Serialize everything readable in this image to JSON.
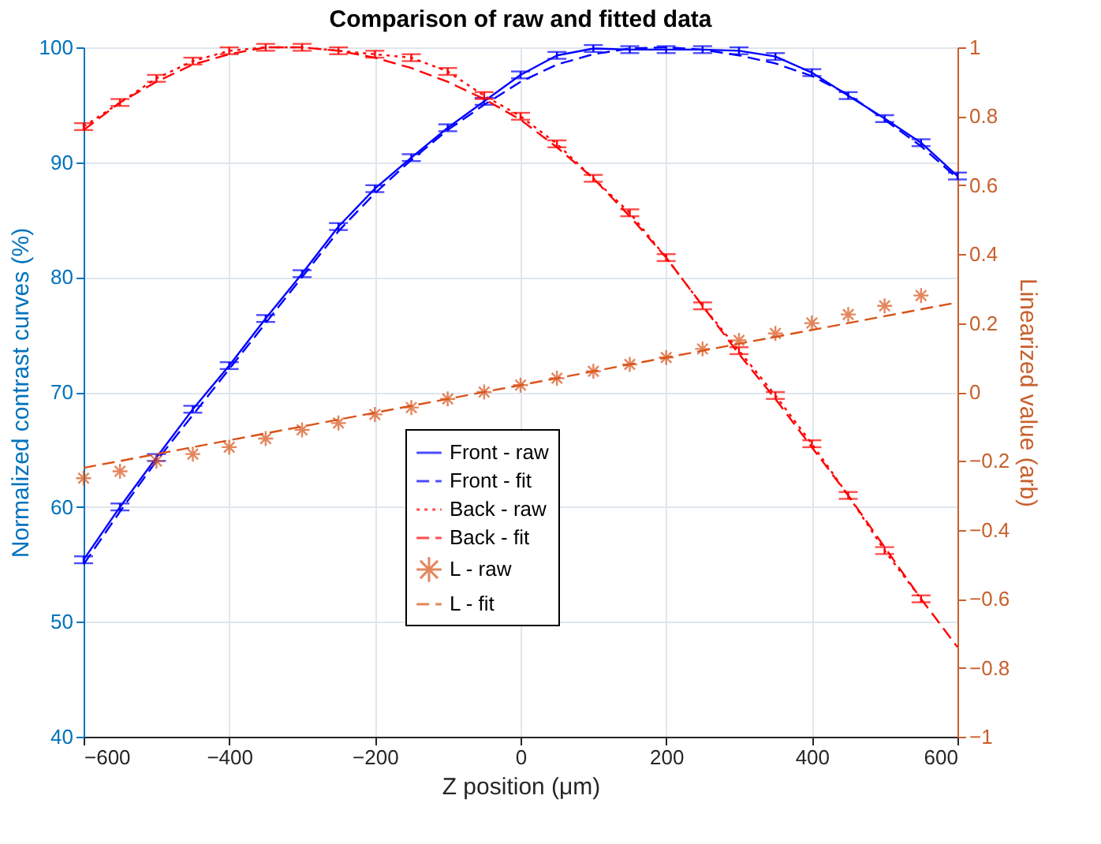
{
  "chart_data": {
    "type": "line",
    "title": "Comparison of raw and fitted data",
    "xlabel": "Z position (μm)",
    "ylabel": "Normalized contrast curves (%)",
    "y2label": "Linearized value (arb)",
    "x": [
      -600,
      -550,
      -500,
      -450,
      -400,
      -350,
      -300,
      -250,
      -200,
      -150,
      -100,
      -50,
      0,
      50,
      100,
      150,
      200,
      250,
      300,
      350,
      400,
      450,
      500,
      550,
      600
    ],
    "xlim": [
      -600,
      600
    ],
    "xticks": [
      -600,
      -400,
      -200,
      0,
      200,
      400,
      600
    ],
    "ylim": [
      40,
      100
    ],
    "yticks": [
      40,
      50,
      60,
      70,
      80,
      90,
      100
    ],
    "y2lim": [
      -1,
      1
    ],
    "y2ticks": [
      -1,
      -0.8,
      -0.6,
      -0.4,
      -0.2,
      0,
      0.2,
      0.4,
      0.6,
      0.8,
      1
    ],
    "grid": true,
    "legend": "bottom",
    "series": [
      {
        "name": "Front - raw",
        "color": "#0000ff",
        "type": "line",
        "line_style": "solid",
        "values": [
          55.4,
          60,
          64.3,
          68.5,
          72.3,
          76.4,
          80.3,
          84.4,
          87.7,
          90.4,
          93,
          95.3,
          97.6,
          99.3,
          99.9,
          99.8,
          99.8,
          99.8,
          99.7,
          99.2,
          97.8,
          95.8,
          93.8,
          91.7,
          88.8
        ],
        "errors": [
          0.3,
          0.3,
          0.3,
          0.3,
          0.3,
          0.3,
          0.3,
          0.3,
          0.3,
          0.3,
          0.3,
          0.3,
          0.3,
          0.3,
          0.3,
          0.3,
          0.3,
          0.3,
          0.3,
          0.3,
          0.3,
          0.3,
          0.3,
          0.3,
          0.3
        ]
      },
      {
        "name": "Front - fit",
        "color": "#0000ff",
        "type": "line",
        "line_style": "dashed",
        "values": [
          55,
          59.6,
          64,
          68,
          72,
          76,
          80,
          84,
          87.3,
          90.2,
          92.8,
          95,
          97,
          98.5,
          99.4,
          99.9,
          100,
          99.8,
          99.3,
          98.6,
          97.5,
          95.9,
          93.7,
          91.4,
          88.6
        ]
      },
      {
        "name": "Back - raw",
        "color": "#ff0000",
        "type": "line",
        "line_style": "dotted",
        "axis": "y2",
        "values": [
          0.77,
          0.84,
          0.91,
          0.96,
          0.99,
          1,
          1,
          0.99,
          0.98,
          0.97,
          0.93,
          0.86,
          0.8,
          0.72,
          0.62,
          0.52,
          0.39,
          0.25,
          0.12,
          -0.01,
          -0.15,
          -0.3,
          -0.46,
          -0.6,
          null
        ],
        "errors": [
          0.01,
          0.01,
          0.01,
          0.01,
          0.01,
          0.01,
          0.01,
          0.01,
          0.01,
          0.01,
          0.01,
          0.01,
          0.01,
          0.01,
          0.01,
          0.01,
          0.01,
          0.01,
          0.01,
          0.01,
          0.01,
          0.01,
          0.01,
          0.01,
          null
        ]
      },
      {
        "name": "Back - fit",
        "color": "#ff0000",
        "type": "line",
        "line_style": "dashed",
        "axis": "y2",
        "values": [
          0.76,
          0.84,
          0.9,
          0.95,
          0.98,
          1,
          1,
          0.99,
          0.97,
          0.94,
          0.9,
          0.85,
          0.79,
          0.71,
          0.62,
          0.51,
          0.39,
          0.25,
          0.11,
          -0.02,
          -0.16,
          -0.3,
          -0.45,
          -0.6,
          -0.74
        ]
      },
      {
        "name": "L - raw",
        "color": "#d95319",
        "type": "scatter",
        "marker": "cross",
        "axis": "y2",
        "values": [
          -0.25,
          -0.23,
          -0.2,
          -0.18,
          -0.16,
          -0.135,
          -0.11,
          -0.09,
          -0.065,
          -0.045,
          -0.02,
          0,
          0.02,
          0.04,
          0.06,
          0.08,
          0.1,
          0.125,
          0.15,
          0.17,
          0.2,
          0.225,
          0.25,
          0.28,
          null
        ]
      },
      {
        "name": "L - fit",
        "color": "#d95319",
        "type": "line",
        "line_style": "dashed",
        "axis": "y2",
        "x": [
          -600,
          600
        ],
        "values": [
          -0.22,
          0.26
        ]
      }
    ]
  }
}
